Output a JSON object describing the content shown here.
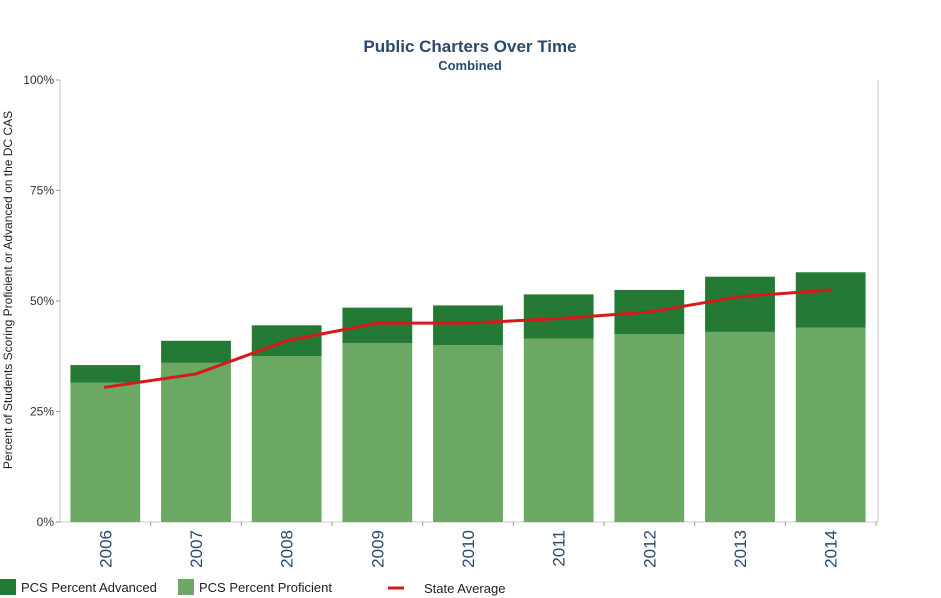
{
  "chart_data": {
    "type": "bar",
    "title": "Public Charters Over Time",
    "subtitle": "Combined",
    "xlabel": "",
    "ylabel": "Percent of Students Scoring Proficient or Advanced on the DC CAS",
    "ylim": [
      0,
      100
    ],
    "yticks": [
      "0%",
      "25%",
      "50%",
      "75%",
      "100%"
    ],
    "ytick_values": [
      0,
      25,
      50,
      75,
      100
    ],
    "categories": [
      "2006",
      "2007",
      "2008",
      "2009",
      "2010",
      "2011",
      "2012",
      "2013",
      "2014"
    ],
    "stacked": true,
    "series": [
      {
        "name": "PCS Percent Proficient",
        "kind": "bar",
        "color": "#6aa863",
        "values": [
          31.5,
          36.0,
          37.5,
          40.5,
          40.0,
          41.5,
          42.5,
          43.0,
          44.0
        ]
      },
      {
        "name": "PCS Percent Advanced",
        "kind": "bar",
        "color": "#247a34",
        "values": [
          4.0,
          5.0,
          7.0,
          8.0,
          9.0,
          10.0,
          10.0,
          12.5,
          12.5
        ]
      },
      {
        "name": "State Average",
        "kind": "line",
        "color": "#d7191c",
        "values": [
          30.5,
          33.5,
          41.0,
          45.0,
          45.0,
          46.0,
          47.5,
          51.0,
          52.5
        ]
      }
    ],
    "legend": {
      "placement": "bottom-left",
      "entries": [
        "PCS Percent Advanced",
        "PCS Percent Proficient",
        "State Average"
      ]
    },
    "grid": false
  }
}
